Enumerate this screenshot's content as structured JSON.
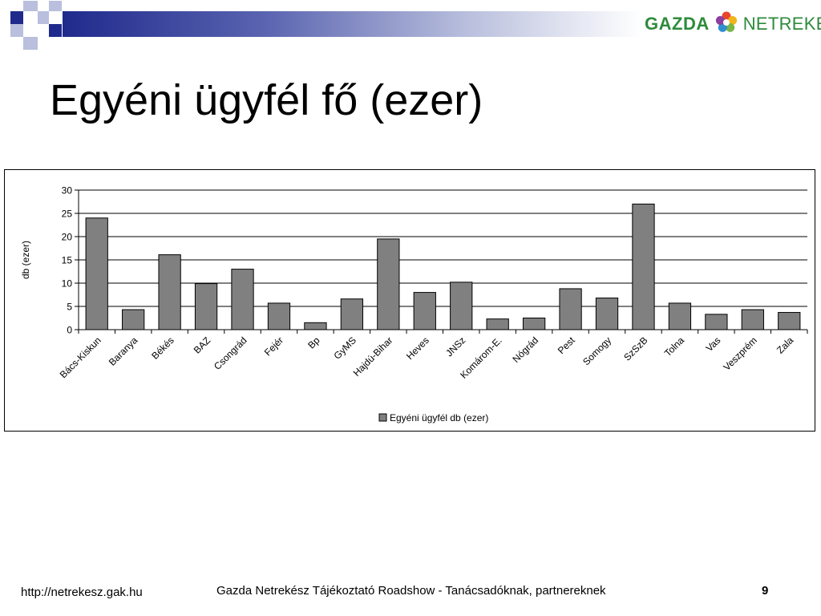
{
  "header": {
    "logo": {
      "brand_left": "GAZDA",
      "brand_right": "NETREKÉSZ",
      "icon": "flower-logo-icon"
    },
    "colors": {
      "band_dark": "#1f2a8c",
      "square_dark": "#1f2a8c",
      "square_light": "#b9bfdd",
      "logo_green": "#2e8b3c"
    }
  },
  "slide": {
    "title": "Egyéni ügyfél fő (ezer)"
  },
  "chart_data": {
    "type": "bar",
    "categories": [
      "Bács-Kiskun",
      "Baranya",
      "Békés",
      "BAZ",
      "Csongrád",
      "Fejér",
      "Bp",
      "GyMS",
      "Hajdú-Bihar",
      "Heves",
      "JNSz",
      "Komárom-E.",
      "Nógrád",
      "Pest",
      "Somogy",
      "SzSzB",
      "Tolna",
      "Vas",
      "Veszprém",
      "Zala"
    ],
    "series": [
      {
        "name": "Egyéni ügyfél db (ezer)",
        "values": [
          24,
          4.3,
          16.1,
          9.9,
          13,
          5.7,
          1.5,
          6.6,
          19.5,
          8,
          10.2,
          2.3,
          2.5,
          8.8,
          6.8,
          27,
          5.7,
          3.3,
          4.3,
          3.7
        ],
        "color": "#808080"
      }
    ],
    "xlabel": "",
    "ylabel": "db (ezer)",
    "ylim": [
      0,
      30
    ],
    "yticks": [
      "0",
      "5",
      "10",
      "15",
      "20",
      "25",
      "30"
    ],
    "grid": "horizontal",
    "legend_position": "bottom-center"
  },
  "footer": {
    "url": "http://netrekesz.gak.hu",
    "center": "Gazda Netrekész Tájékoztató Roadshow - Tanácsadóknak, partnereknek",
    "page": "9"
  }
}
